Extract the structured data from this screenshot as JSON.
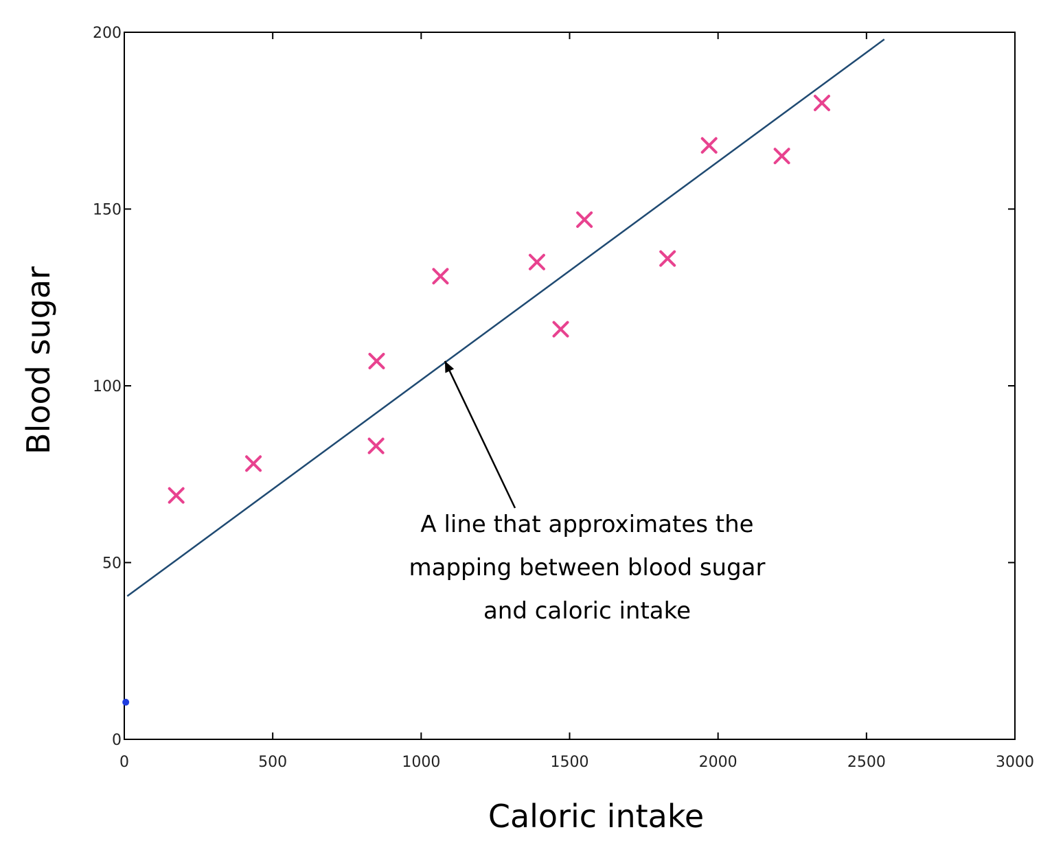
{
  "chart_data": {
    "type": "scatter",
    "title": "",
    "xlabel": "Caloric intake",
    "ylabel": "Blood sugar",
    "xlim": [
      0,
      3000
    ],
    "ylim": [
      0,
      200
    ],
    "xticks": [
      0,
      500,
      1000,
      1500,
      2000,
      2500,
      3000
    ],
    "yticks": [
      0,
      50,
      100,
      150,
      200
    ],
    "xtick_labels": [
      "0",
      "500",
      "1000",
      "1500",
      "2000",
      "2500",
      "3000"
    ],
    "ytick_labels": [
      "0",
      "50",
      "100",
      "150",
      "200"
    ],
    "grid": false,
    "series": [
      {
        "name": "observations",
        "marker": "x",
        "color": "#e8428f",
        "x": [
          175,
          435,
          848,
          850,
          1065,
          1390,
          1470,
          1550,
          1830,
          1970,
          2215,
          2350
        ],
        "y": [
          69,
          78,
          83,
          107,
          131,
          135,
          116,
          147,
          136,
          168,
          165,
          180
        ]
      },
      {
        "name": "origin point",
        "marker": "dot",
        "color": "#1f3de0",
        "x": [
          5
        ],
        "y": [
          10.5
        ]
      }
    ],
    "fit_line": {
      "name": "approximating line",
      "color": "#1f4a72",
      "x": [
        10,
        2560
      ],
      "y": [
        40.5,
        198
      ]
    },
    "annotation": {
      "lines": [
        "A line that approximates the",
        "mapping between blood sugar",
        "and caloric intake"
      ],
      "arrow_to": {
        "x": 1080,
        "y": 107
      }
    }
  }
}
